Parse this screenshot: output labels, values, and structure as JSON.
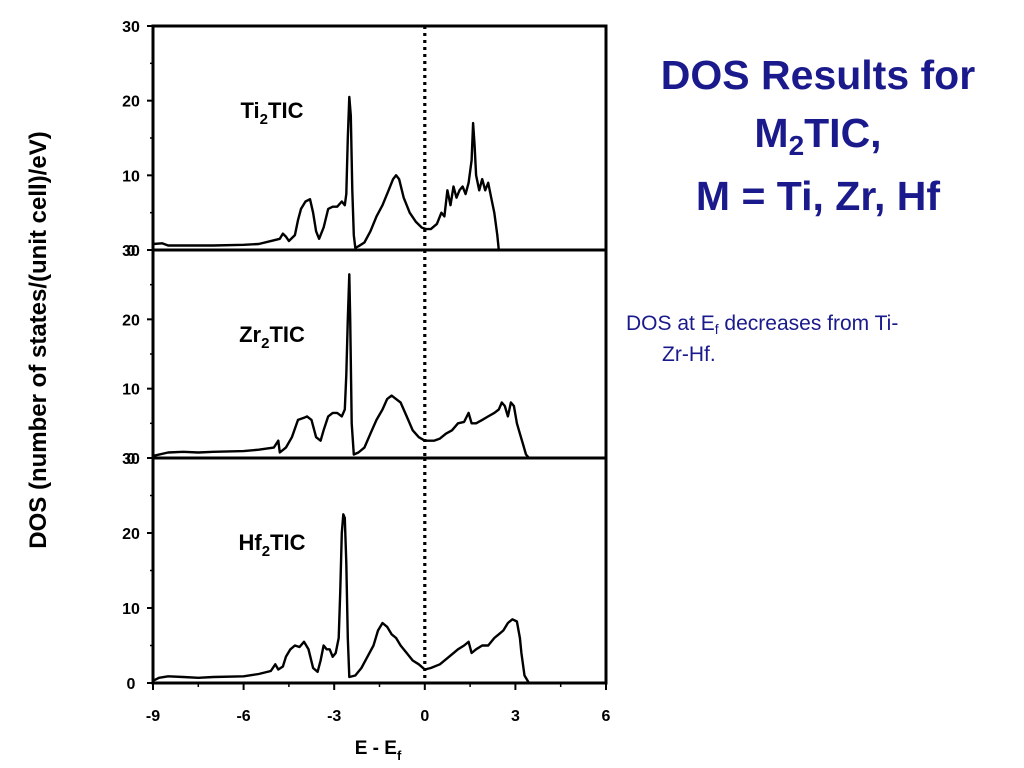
{
  "slide": {
    "title_line1": "DOS Results for",
    "title_line2_main": "M",
    "title_line2_sub": "2",
    "title_line2_rest": "TIC,",
    "title_line3": "M = Ti, Zr, Hf",
    "bullet_prefix": "DOS at E",
    "bullet_sub": "f",
    "bullet_rest": " decreases from Ti-",
    "bullet_cont": "Zr-Hf."
  },
  "chart_data": {
    "type": "line",
    "ylabel": "DOS (number of states/(unit cell)/eV)",
    "xlabel_main": "E - E",
    "xlabel_sub": "f",
    "xlim": [
      -9,
      6
    ],
    "ylim": [
      0,
      30
    ],
    "x_ticks": [
      "-9",
      "-6",
      "-3",
      "0",
      "3",
      "6"
    ],
    "y_ticks": [
      "0",
      "10",
      "20",
      "30"
    ],
    "fermi_line_x": 0,
    "series": [
      {
        "name": "Ti2TIC",
        "label_main": "Ti",
        "label_sub": "2",
        "label_rest": "TIC",
        "points": [
          [
            -9,
            0.8
          ],
          [
            -8.7,
            0.9
          ],
          [
            -8.5,
            0.6
          ],
          [
            -8,
            0.6
          ],
          [
            -7,
            0.6
          ],
          [
            -6,
            0.7
          ],
          [
            -5.5,
            0.8
          ],
          [
            -5,
            1.3
          ],
          [
            -4.8,
            1.5
          ],
          [
            -4.7,
            2.2
          ],
          [
            -4.6,
            1.8
          ],
          [
            -4.5,
            1.2
          ],
          [
            -4.3,
            2
          ],
          [
            -4.2,
            4
          ],
          [
            -4.1,
            5.5
          ],
          [
            -3.95,
            6.5
          ],
          [
            -3.8,
            6.8
          ],
          [
            -3.7,
            5
          ],
          [
            -3.6,
            2.5
          ],
          [
            -3.5,
            1.5
          ],
          [
            -3.35,
            3
          ],
          [
            -3.2,
            5.5
          ],
          [
            -3.05,
            5.8
          ],
          [
            -2.9,
            5.8
          ],
          [
            -2.75,
            6.5
          ],
          [
            -2.65,
            6
          ],
          [
            -2.6,
            7.5
          ],
          [
            -2.55,
            15
          ],
          [
            -2.5,
            20.5
          ],
          [
            -2.45,
            18
          ],
          [
            -2.4,
            8
          ],
          [
            -2.35,
            2
          ],
          [
            -2.3,
            0.3
          ],
          [
            -2.2,
            0.5
          ],
          [
            -2,
            1
          ],
          [
            -1.8,
            2.5
          ],
          [
            -1.6,
            4.5
          ],
          [
            -1.4,
            6
          ],
          [
            -1.2,
            8
          ],
          [
            -1.05,
            9.5
          ],
          [
            -0.95,
            10
          ],
          [
            -0.85,
            9.5
          ],
          [
            -0.7,
            7
          ],
          [
            -0.5,
            5
          ],
          [
            -0.3,
            3.8
          ],
          [
            -0.1,
            3
          ],
          [
            0.05,
            2.8
          ],
          [
            0.2,
            2.8
          ],
          [
            0.4,
            3.5
          ],
          [
            0.55,
            5
          ],
          [
            0.65,
            4.5
          ],
          [
            0.75,
            8
          ],
          [
            0.85,
            6
          ],
          [
            0.95,
            8.5
          ],
          [
            1.05,
            7
          ],
          [
            1.15,
            8
          ],
          [
            1.25,
            8.5
          ],
          [
            1.35,
            7.5
          ],
          [
            1.45,
            9
          ],
          [
            1.55,
            12
          ],
          [
            1.6,
            17
          ],
          [
            1.65,
            14
          ],
          [
            1.7,
            10
          ],
          [
            1.8,
            8
          ],
          [
            1.9,
            9.5
          ],
          [
            2,
            8
          ],
          [
            2.1,
            9
          ],
          [
            2.2,
            7
          ],
          [
            2.3,
            5
          ],
          [
            2.4,
            2
          ],
          [
            2.45,
            0
          ]
        ]
      },
      {
        "name": "Zr2TIC",
        "label_main": "Zr",
        "label_sub": "2",
        "label_rest": "TIC",
        "points": [
          [
            -9,
            0.3
          ],
          [
            -8.5,
            0.8
          ],
          [
            -8,
            0.9
          ],
          [
            -7.5,
            0.8
          ],
          [
            -7,
            0.9
          ],
          [
            -6,
            1
          ],
          [
            -5.5,
            1.2
          ],
          [
            -5,
            1.5
          ],
          [
            -4.85,
            2.5
          ],
          [
            -4.8,
            0.8
          ],
          [
            -4.6,
            1.5
          ],
          [
            -4.4,
            3
          ],
          [
            -4.2,
            5.5
          ],
          [
            -4.0,
            5.8
          ],
          [
            -3.9,
            6
          ],
          [
            -3.75,
            5.5
          ],
          [
            -3.6,
            3
          ],
          [
            -3.45,
            2.5
          ],
          [
            -3.35,
            4
          ],
          [
            -3.2,
            6
          ],
          [
            -3.05,
            6.5
          ],
          [
            -2.9,
            6.5
          ],
          [
            -2.75,
            6
          ],
          [
            -2.65,
            7
          ],
          [
            -2.6,
            12
          ],
          [
            -2.55,
            20
          ],
          [
            -2.5,
            26.5
          ],
          [
            -2.47,
            20
          ],
          [
            -2.42,
            5
          ],
          [
            -2.35,
            0.5
          ],
          [
            -2.2,
            0.8
          ],
          [
            -2,
            1.5
          ],
          [
            -1.8,
            3.5
          ],
          [
            -1.6,
            5.5
          ],
          [
            -1.4,
            7
          ],
          [
            -1.25,
            8.5
          ],
          [
            -1.1,
            9
          ],
          [
            -0.95,
            8.5
          ],
          [
            -0.8,
            8
          ],
          [
            -0.6,
            6
          ],
          [
            -0.4,
            4
          ],
          [
            -0.2,
            3
          ],
          [
            0,
            2.5
          ],
          [
            0.3,
            2.5
          ],
          [
            0.5,
            2.8
          ],
          [
            0.7,
            3.5
          ],
          [
            0.9,
            4
          ],
          [
            1.1,
            5
          ],
          [
            1.3,
            5.2
          ],
          [
            1.45,
            6.5
          ],
          [
            1.55,
            5
          ],
          [
            1.7,
            5
          ],
          [
            1.9,
            5.5
          ],
          [
            2.1,
            6
          ],
          [
            2.3,
            6.5
          ],
          [
            2.45,
            7
          ],
          [
            2.55,
            8
          ],
          [
            2.65,
            7.5
          ],
          [
            2.75,
            6
          ],
          [
            2.85,
            8
          ],
          [
            2.95,
            7.5
          ],
          [
            3.05,
            5
          ],
          [
            3.15,
            3.5
          ],
          [
            3.25,
            2
          ],
          [
            3.35,
            0.5
          ],
          [
            3.45,
            0
          ]
        ]
      },
      {
        "name": "Hf2TIC",
        "label_main": "Hf",
        "label_sub": "2",
        "label_rest": "TIC",
        "points": [
          [
            -9,
            0.3
          ],
          [
            -8.8,
            0.7
          ],
          [
            -8.5,
            0.9
          ],
          [
            -8,
            0.8
          ],
          [
            -7.5,
            0.7
          ],
          [
            -7,
            0.8
          ],
          [
            -6,
            0.9
          ],
          [
            -5.5,
            1.2
          ],
          [
            -5.1,
            1.6
          ],
          [
            -4.95,
            2.5
          ],
          [
            -4.85,
            1.8
          ],
          [
            -4.7,
            2.2
          ],
          [
            -4.6,
            3.5
          ],
          [
            -4.45,
            4.5
          ],
          [
            -4.3,
            5
          ],
          [
            -4.15,
            4.8
          ],
          [
            -4.0,
            5.5
          ],
          [
            -3.85,
            4.5
          ],
          [
            -3.7,
            2
          ],
          [
            -3.55,
            1.5
          ],
          [
            -3.45,
            3
          ],
          [
            -3.35,
            5
          ],
          [
            -3.25,
            4.5
          ],
          [
            -3.15,
            4.5
          ],
          [
            -3.05,
            3.5
          ],
          [
            -2.95,
            4
          ],
          [
            -2.85,
            6
          ],
          [
            -2.8,
            12
          ],
          [
            -2.75,
            20
          ],
          [
            -2.7,
            22.5
          ],
          [
            -2.65,
            22
          ],
          [
            -2.6,
            16
          ],
          [
            -2.55,
            6
          ],
          [
            -2.5,
            0.8
          ],
          [
            -2.3,
            1
          ],
          [
            -2.1,
            2
          ],
          [
            -1.9,
            3.5
          ],
          [
            -1.7,
            5
          ],
          [
            -1.55,
            7
          ],
          [
            -1.4,
            8
          ],
          [
            -1.25,
            7.5
          ],
          [
            -1.1,
            6.5
          ],
          [
            -0.95,
            6
          ],
          [
            -0.8,
            5
          ],
          [
            -0.6,
            4
          ],
          [
            -0.4,
            3
          ],
          [
            -0.2,
            2.5
          ],
          [
            0,
            1.8
          ],
          [
            0.2,
            2
          ],
          [
            0.5,
            2.5
          ],
          [
            0.8,
            3.5
          ],
          [
            1.1,
            4.5
          ],
          [
            1.3,
            5
          ],
          [
            1.45,
            5.5
          ],
          [
            1.55,
            4
          ],
          [
            1.7,
            4.5
          ],
          [
            1.9,
            5
          ],
          [
            2.1,
            5
          ],
          [
            2.3,
            6
          ],
          [
            2.45,
            6.5
          ],
          [
            2.6,
            7
          ],
          [
            2.75,
            8
          ],
          [
            2.9,
            8.5
          ],
          [
            3.05,
            8.2
          ],
          [
            3.15,
            6
          ],
          [
            3.2,
            4
          ],
          [
            3.3,
            1
          ],
          [
            3.45,
            0
          ]
        ]
      }
    ]
  }
}
